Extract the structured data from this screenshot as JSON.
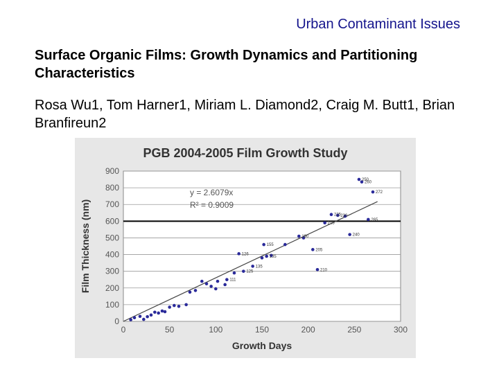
{
  "header": "Urban Contaminant Issues",
  "title": "Surface Organic Films: Growth Dynamics and Partitioning Characteristics",
  "authors": "Rosa Wu1, Tom Harner1, Miriam L. Diamond2, Craig M. Butt1, Brian Branfireun2",
  "colors": {
    "points": "#2a2a9a",
    "trendline": "#444444",
    "threshold": "#000000",
    "plot_bg": "#ffffff",
    "figure_bg": "#e7e7e7"
  },
  "chart_data": {
    "type": "scatter",
    "title": "PGB 2004-2005 Film Growth Study",
    "xlabel": "Growth Days",
    "ylabel": "Film Thickness (nm)",
    "xlim": [
      0,
      300
    ],
    "ylim": [
      0,
      900
    ],
    "xticks": [
      0,
      50,
      100,
      150,
      200,
      250,
      300
    ],
    "yticks": [
      0,
      100,
      200,
      300,
      400,
      500,
      600,
      700,
      800,
      900
    ],
    "grid": "horizontal",
    "trendline": {
      "equation": "y = 2.6079x",
      "r2": "R² = 0.9009",
      "slope": 2.6079
    },
    "reference_line": {
      "y": 600
    },
    "points": [
      {
        "x": 8,
        "y": 10
      },
      {
        "x": 12,
        "y": 22
      },
      {
        "x": 18,
        "y": 30
      },
      {
        "x": 22,
        "y": 12
      },
      {
        "x": 26,
        "y": 28
      },
      {
        "x": 30,
        "y": 38
      },
      {
        "x": 34,
        "y": 55
      },
      {
        "x": 38,
        "y": 50
      },
      {
        "x": 42,
        "y": 62
      },
      {
        "x": 45,
        "y": 58
      },
      {
        "x": 50,
        "y": 85
      },
      {
        "x": 55,
        "y": 95
      },
      {
        "x": 60,
        "y": 90
      },
      {
        "x": 68,
        "y": 100
      },
      {
        "x": 72,
        "y": 175
      },
      {
        "x": 78,
        "y": 185
      },
      {
        "x": 85,
        "y": 240
      },
      {
        "x": 90,
        "y": 225
      },
      {
        "x": 95,
        "y": 210
      },
      {
        "x": 100,
        "y": 195
      },
      {
        "x": 102,
        "y": 240
      },
      {
        "x": 110,
        "y": 220
      },
      {
        "x": 112,
        "y": 250
      },
      {
        "x": 120,
        "y": 290
      },
      {
        "x": 125,
        "y": 405
      },
      {
        "x": 130,
        "y": 300
      },
      {
        "x": 140,
        "y": 330
      },
      {
        "x": 150,
        "y": 380
      },
      {
        "x": 152,
        "y": 460
      },
      {
        "x": 155,
        "y": 390
      },
      {
        "x": 160,
        "y": 395
      },
      {
        "x": 175,
        "y": 460
      },
      {
        "x": 190,
        "y": 510
      },
      {
        "x": 195,
        "y": 500
      },
      {
        "x": 205,
        "y": 430
      },
      {
        "x": 210,
        "y": 310
      },
      {
        "x": 218,
        "y": 590
      },
      {
        "x": 225,
        "y": 640
      },
      {
        "x": 232,
        "y": 635
      },
      {
        "x": 240,
        "y": 630
      },
      {
        "x": 245,
        "y": 520
      },
      {
        "x": 255,
        "y": 850
      },
      {
        "x": 258,
        "y": 835
      },
      {
        "x": 265,
        "y": 610
      },
      {
        "x": 270,
        "y": 775
      }
    ],
    "point_labels": [
      {
        "x": 255,
        "y": 850,
        "text": "250"
      },
      {
        "x": 258,
        "y": 835,
        "text": "260"
      },
      {
        "x": 270,
        "y": 775,
        "text": "272"
      },
      {
        "x": 225,
        "y": 640,
        "text": "225"
      },
      {
        "x": 232,
        "y": 635,
        "text": "230"
      },
      {
        "x": 265,
        "y": 610,
        "text": "265"
      },
      {
        "x": 218,
        "y": 590,
        "text": "215"
      },
      {
        "x": 245,
        "y": 520,
        "text": "240"
      },
      {
        "x": 190,
        "y": 510,
        "text": "190"
      },
      {
        "x": 205,
        "y": 430,
        "text": "205"
      },
      {
        "x": 210,
        "y": 310,
        "text": "210"
      },
      {
        "x": 152,
        "y": 460,
        "text": "155"
      },
      {
        "x": 125,
        "y": 405,
        "text": "126"
      },
      {
        "x": 155,
        "y": 390,
        "text": "135"
      },
      {
        "x": 140,
        "y": 330,
        "text": "135"
      },
      {
        "x": 130,
        "y": 300,
        "text": "125"
      },
      {
        "x": 112,
        "y": 250,
        "text": "111"
      }
    ]
  }
}
